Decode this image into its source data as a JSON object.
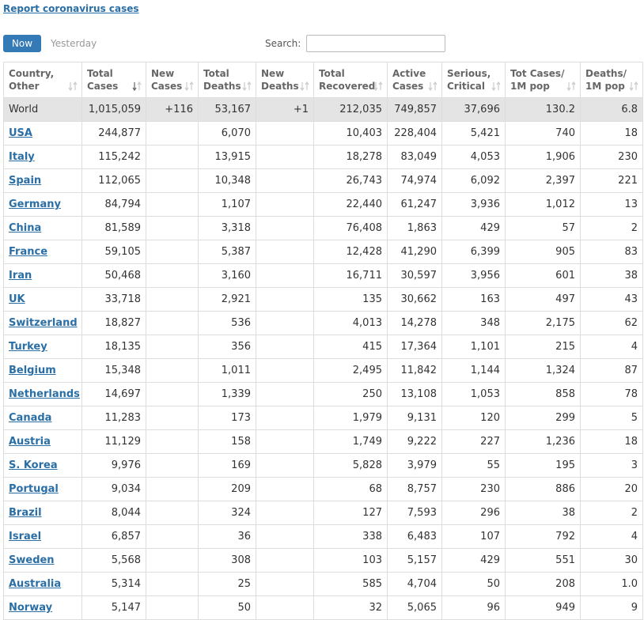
{
  "header": {
    "link": "Report coronavirus cases",
    "tabs": [
      "Now",
      "Yesterday"
    ],
    "search_label": "Search:"
  },
  "table": {
    "columns": [
      "Country,\nOther",
      "Total\nCases",
      "New\nCases",
      "Total\nDeaths",
      "New\nDeaths",
      "Total\nRecovered",
      "Active\nCases",
      "Serious,\nCritical",
      "Tot Cases/\n1M pop",
      "Deaths/\n1M pop"
    ],
    "rows": [
      [
        "World",
        "1,015,059",
        "+116",
        "53,167",
        "+1",
        "212,035",
        "749,857",
        "37,696",
        "130.2",
        "6.8"
      ],
      [
        "USA",
        "244,877",
        null,
        "6,070",
        null,
        "10,403",
        "228,404",
        "5,421",
        "740",
        "18"
      ],
      [
        "Italy",
        "115,242",
        null,
        "13,915",
        null,
        "18,278",
        "83,049",
        "4,053",
        "1,906",
        "230"
      ],
      [
        "Spain",
        "112,065",
        null,
        "10,348",
        null,
        "26,743",
        "74,974",
        "6,092",
        "2,397",
        "221"
      ],
      [
        "Germany",
        "84,794",
        null,
        "1,107",
        null,
        "22,440",
        "61,247",
        "3,936",
        "1,012",
        "13"
      ],
      [
        "China",
        "81,589",
        null,
        "3,318",
        null,
        "76,408",
        "1,863",
        "429",
        "57",
        "2"
      ],
      [
        "France",
        "59,105",
        null,
        "5,387",
        null,
        "12,428",
        "41,290",
        "6,399",
        "905",
        "83"
      ],
      [
        "Iran",
        "50,468",
        null,
        "3,160",
        null,
        "16,711",
        "30,597",
        "3,956",
        "601",
        "38"
      ],
      [
        "UK",
        "33,718",
        null,
        "2,921",
        null,
        "135",
        "30,662",
        "163",
        "497",
        "43"
      ],
      [
        "Switzerland",
        "18,827",
        null,
        "536",
        null,
        "4,013",
        "14,278",
        "348",
        "2,175",
        "62"
      ],
      [
        "Turkey",
        "18,135",
        null,
        "356",
        null,
        "415",
        "17,364",
        "1,101",
        "215",
        "4"
      ],
      [
        "Belgium",
        "15,348",
        null,
        "1,011",
        null,
        "2,495",
        "11,842",
        "1,144",
        "1,324",
        "87"
      ],
      [
        "Netherlands",
        "14,697",
        null,
        "1,339",
        null,
        "250",
        "13,108",
        "1,053",
        "858",
        "78"
      ],
      [
        "Canada",
        "11,283",
        null,
        "173",
        null,
        "1,979",
        "9,131",
        "120",
        "299",
        "5"
      ],
      [
        "Austria",
        "11,129",
        null,
        "158",
        null,
        "1,749",
        "9,222",
        "227",
        "1,236",
        "18"
      ],
      [
        "S. Korea",
        "9,976",
        null,
        "169",
        null,
        "5,828",
        "3,979",
        "55",
        "195",
        "3"
      ],
      [
        "Portugal",
        "9,034",
        null,
        "209",
        null,
        "68",
        "8,757",
        "230",
        "886",
        "20"
      ],
      [
        "Brazil",
        "8,044",
        null,
        "324",
        null,
        "127",
        "7,593",
        "296",
        "38",
        "2"
      ],
      [
        "Israel",
        "6,857",
        null,
        "36",
        null,
        "338",
        "6,483",
        "107",
        "792",
        "4"
      ],
      [
        "Sweden",
        "5,568",
        null,
        "308",
        null,
        "103",
        "5,157",
        "429",
        "551",
        "30"
      ],
      [
        "Australia",
        "5,314",
        null,
        "25",
        null,
        "585",
        "4,704",
        "50",
        "208",
        "1.0"
      ],
      [
        "Norway",
        "5,147",
        null,
        "50",
        null,
        "32",
        "5,065",
        "96",
        "949",
        "9"
      ]
    ]
  }
}
